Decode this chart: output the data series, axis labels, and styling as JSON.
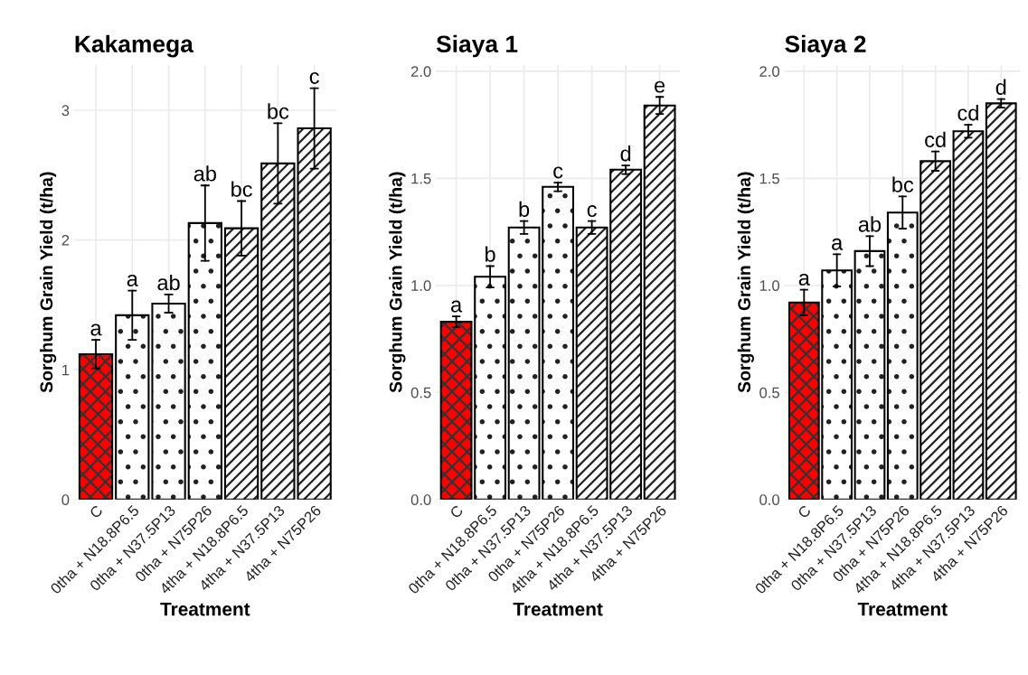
{
  "chart_data": [
    {
      "type": "bar",
      "title": "Kakamega",
      "xlabel": "Treatment",
      "ylabel": "Sorghum Grain Yield (t/ha)",
      "categories": [
        "C",
        "0tha + N18.8P6.5",
        "0tha + N37.5P13",
        "0tha + N75P26",
        "4tha + N18.8P6.5",
        "4tha + N37.5P13",
        "4tha + N75P26"
      ],
      "values": [
        1.12,
        1.42,
        1.51,
        2.13,
        2.09,
        2.59,
        2.86
      ],
      "errors": [
        0.11,
        0.19,
        0.07,
        0.29,
        0.21,
        0.31,
        0.31
      ],
      "colors": [
        "#ff0000",
        "#ffffff",
        "#ffffff",
        "#ffffff",
        "#ffffff",
        "#ffffff",
        "#ffffff"
      ],
      "ylim": [
        0,
        3.35
      ],
      "yticks": [
        0,
        1,
        2,
        3
      ],
      "grid": true,
      "annotations": [
        "a",
        "a",
        "ab",
        "ab",
        "bc",
        "bc",
        "c"
      ]
    },
    {
      "type": "bar",
      "title": "Siaya 1",
      "xlabel": "Treatment",
      "ylabel": "Sorghum Grain Yield (t/ha)",
      "categories": [
        "C",
        "0tha + N18.8P6.5",
        "0tha + N37.5P13",
        "0tha + N75P26",
        "4tha + N18.8P6.5",
        "4tha + N37.5P13",
        "4tha + N75P26"
      ],
      "values": [
        0.83,
        1.04,
        1.27,
        1.46,
        1.27,
        1.54,
        1.84
      ],
      "errors": [
        0.025,
        0.05,
        0.03,
        0.02,
        0.03,
        0.02,
        0.04
      ],
      "colors": [
        "#ff0000",
        "#ffffff",
        "#ffffff",
        "#ffffff",
        "#ffffff",
        "#ffffff",
        "#ffffff"
      ],
      "ylim": [
        0,
        2.03
      ],
      "yticks": [
        {
          "value": 0,
          "label": "0.0"
        },
        {
          "value": 0.5,
          "label": "0.5"
        },
        {
          "value": 1,
          "label": "1.0"
        },
        {
          "value": 1.5,
          "label": "1.5"
        },
        {
          "value": 2,
          "label": "2.0"
        }
      ],
      "grid": true,
      "annotations": [
        "a",
        "b",
        "b",
        "c",
        "c",
        "d",
        "e"
      ]
    },
    {
      "type": "bar",
      "title": "Siaya 2",
      "xlabel": "Treatment",
      "ylabel": "Sorghum Grain Yield (t/ha)",
      "categories": [
        "C",
        "0tha + N18.8P6.5",
        "0tha + N37.5P13",
        "0tha + N75P26",
        "4tha + N18.8P6.5",
        "4tha + N37.5P13",
        "4tha + N75P26"
      ],
      "values": [
        0.92,
        1.07,
        1.16,
        1.34,
        1.58,
        1.72,
        1.85
      ],
      "errors": [
        0.06,
        0.075,
        0.07,
        0.075,
        0.045,
        0.03,
        0.02
      ],
      "colors": [
        "#ff0000",
        "#ffffff",
        "#ffffff",
        "#ffffff",
        "#ffffff",
        "#ffffff",
        "#ffffff"
      ],
      "ylim": [
        0,
        2.03
      ],
      "yticks": [
        {
          "value": 0,
          "label": "0.0"
        },
        {
          "value": 0.5,
          "label": "0.5"
        },
        {
          "value": 1,
          "label": "1.0"
        },
        {
          "value": 1.5,
          "label": "1.5"
        },
        {
          "value": 2,
          "label": "2.0"
        }
      ],
      "grid": true,
      "annotations": [
        "a",
        "a",
        "ab",
        "bc",
        "cd",
        "cd",
        "d"
      ]
    }
  ]
}
